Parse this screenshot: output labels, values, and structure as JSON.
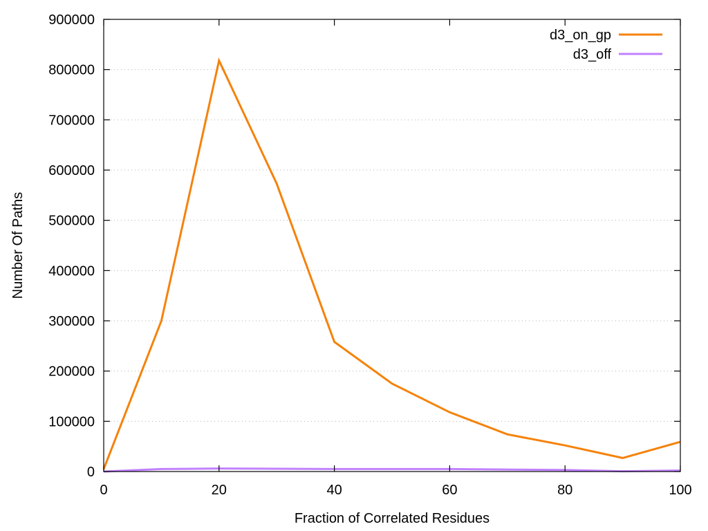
{
  "chart_data": {
    "type": "line",
    "title": "",
    "xlabel": "Fraction of Correlated Residues",
    "ylabel": "Number Of Paths",
    "xlim": [
      0,
      100
    ],
    "ylim": [
      0,
      900000
    ],
    "x_ticks": [
      0,
      20,
      40,
      60,
      80,
      100
    ],
    "y_ticks": [
      0,
      100000,
      200000,
      300000,
      400000,
      500000,
      600000,
      700000,
      800000,
      900000
    ],
    "x_tick_labels": [
      "0",
      "20",
      "40",
      "60",
      "80",
      "100"
    ],
    "y_tick_labels": [
      "0",
      "100000",
      "200000",
      "300000",
      "400000",
      "500000",
      "600000",
      "700000",
      "800000",
      "900000"
    ],
    "grid": "horizontal dotted",
    "legend_position": "top-right",
    "x": [
      0,
      10,
      20,
      30,
      40,
      50,
      60,
      70,
      80,
      90,
      100
    ],
    "series": [
      {
        "name": "d3_on_gp",
        "color": "#f5820a",
        "values": [
          5000,
          300000,
          818000,
          573000,
          258000,
          175000,
          118000,
          74000,
          52000,
          27000,
          59000
        ]
      },
      {
        "name": "d3_off",
        "color": "#c080ff",
        "values": [
          0,
          5000,
          6000,
          5500,
          5000,
          5000,
          5000,
          4000,
          3000,
          500,
          2000
        ]
      }
    ]
  }
}
